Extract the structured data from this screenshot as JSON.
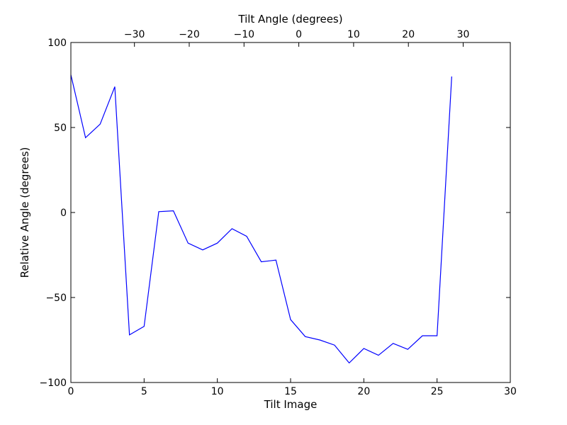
{
  "chart_data": {
    "type": "line",
    "xlabel": "Tilt Image",
    "ylabel": "Relative Angle (degrees)",
    "x2label": "Tilt Angle (degrees)",
    "xlim": [
      0,
      30
    ],
    "ylim": [
      -100,
      100
    ],
    "x2lim": [
      -41.6,
      38.6
    ],
    "grid": false,
    "xticks": [
      0,
      5,
      10,
      15,
      20,
      25,
      30
    ],
    "xtick_labels": [
      "0",
      "5",
      "10",
      "15",
      "20",
      "25",
      "30"
    ],
    "yticks": [
      -100,
      -50,
      0,
      50,
      100
    ],
    "ytick_labels": [
      "−100",
      "−50",
      "0",
      "50",
      "100"
    ],
    "x2ticks": [
      -30,
      -20,
      -10,
      0,
      10,
      20,
      30
    ],
    "x2tick_labels": [
      "−30",
      "−20",
      "−10",
      "0",
      "10",
      "20",
      "30"
    ],
    "line_color": "#0000ff",
    "x": [
      0,
      1,
      2,
      3,
      4,
      5,
      6,
      7,
      8,
      9,
      10,
      11,
      12,
      13,
      14,
      15,
      16,
      17,
      18,
      19,
      20,
      21,
      22,
      23,
      24,
      25,
      26
    ],
    "y": [
      81,
      44,
      52,
      74,
      -72,
      -67,
      0.5,
      1,
      -18,
      -22,
      -18,
      -9.5,
      -14,
      -29,
      -28,
      -63,
      -73,
      -75,
      -78,
      -88.5,
      -80,
      -84,
      -77,
      -80.5,
      -72.5,
      -72.5,
      80
    ]
  }
}
